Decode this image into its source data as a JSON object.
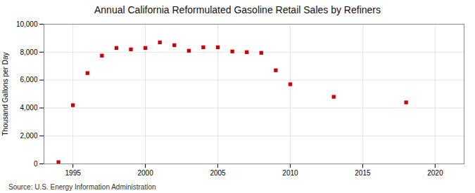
{
  "chart_data": {
    "type": "scatter",
    "title": "Annual California Reformulated Gasoline Retail Sales by Refiners",
    "ylabel": "Thousand Gallons per Day",
    "source": "Source: U.S. Energy Information Administration",
    "x": [
      1994,
      1995,
      1996,
      1997,
      1998,
      1999,
      2000,
      2001,
      2002,
      2003,
      2004,
      2005,
      2006,
      2007,
      2008,
      2009,
      2010,
      2013,
      2018
    ],
    "values": [
      120,
      4200,
      6500,
      7750,
      8300,
      8200,
      8300,
      8700,
      8500,
      8100,
      8350,
      8350,
      8050,
      8000,
      7950,
      6700,
      5700,
      4800,
      4400
    ],
    "color": "#cc0000",
    "marker": "square",
    "xlim": [
      1993,
      2022
    ],
    "xticks": [
      1995,
      2000,
      2005,
      2010,
      2015,
      2020
    ],
    "ylim": [
      0,
      10000
    ],
    "yticks": [
      0,
      {
        "value": 2000,
        "label": "2,000"
      },
      {
        "value": 4000,
        "label": "4,000"
      },
      {
        "value": 6000,
        "label": "6,000"
      },
      {
        "value": 8000,
        "label": "8,000"
      },
      {
        "value": 10000,
        "label": "10,000"
      }
    ],
    "grid": true
  }
}
